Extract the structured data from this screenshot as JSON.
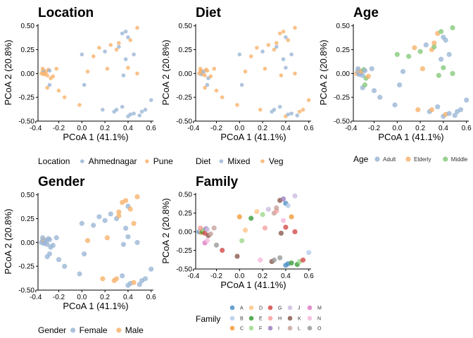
{
  "axis": {
    "xlabel": "PCoA 1 (41.1%)",
    "ylabel": "PCoA 2 (20.8%)",
    "xlim": [
      -0.38,
      0.62
    ],
    "ylim": [
      -0.5,
      0.52
    ],
    "xticks": [
      -0.4,
      -0.2,
      0.0,
      0.2,
      0.4,
      0.6
    ],
    "xtick_labels": [
      "-0.4",
      "-0.2",
      "0.0",
      "0.2",
      "0.4",
      "0.6"
    ],
    "yticks": [
      -0.5,
      -0.25,
      0.0,
      0.25,
      0.5
    ],
    "ytick_labels": [
      "-0.50",
      "-0.25",
      "0.00",
      "0.25",
      "0.50"
    ],
    "grid": false
  },
  "points": {
    "x": [
      -0.35,
      -0.34,
      -0.33,
      -0.33,
      -0.32,
      -0.31,
      -0.3,
      -0.34,
      -0.29,
      -0.28,
      -0.27,
      -0.25,
      -0.3,
      -0.28,
      -0.2,
      -0.15,
      -0.02,
      0.0,
      0.1,
      0.15,
      0.2,
      0.25,
      0.3,
      0.32,
      0.35,
      0.38,
      0.4,
      0.42,
      0.45,
      0.48,
      0.28,
      0.3,
      0.35,
      0.4,
      0.42,
      0.45,
      0.5,
      0.52,
      0.55,
      0.6,
      0.05,
      0.22,
      0.18,
      0.38,
      0.36,
      0.32,
      0.4,
      0.48,
      -0.22,
      0.02
    ],
    "y": [
      0.0,
      0.02,
      -0.01,
      0.03,
      0.0,
      0.02,
      -0.02,
      0.05,
      0.04,
      0.03,
      -0.05,
      -0.03,
      -0.15,
      -0.12,
      -0.18,
      -0.25,
      -0.33,
      0.2,
      0.18,
      0.27,
      0.23,
      0.3,
      0.25,
      0.28,
      0.42,
      0.44,
      0.38,
      0.35,
      0.2,
      0.48,
      -0.4,
      -0.38,
      -0.35,
      -0.45,
      -0.43,
      -0.42,
      -0.44,
      -0.4,
      -0.38,
      -0.28,
      0.02,
      0.05,
      -0.38,
      0.15,
      -0.02,
      0.32,
      0.06,
      0.0,
      0.05,
      -0.12
    ],
    "location": [
      "Pune",
      "Pune",
      "Pune",
      "Ahmednagar",
      "Pune",
      "Pune",
      "Pune",
      "Pune",
      "Pune",
      "Ahmednagar",
      "Pune",
      "Pune",
      "Pune",
      "Ahmednagar",
      "Pune",
      "Pune",
      "Pune",
      "Ahmednagar",
      "Pune",
      "Pune",
      "Ahmednagar",
      "Pune",
      "Pune",
      "Ahmednagar",
      "Ahmednagar",
      "Ahmednagar",
      "Ahmednagar",
      "Pune",
      "Ahmednagar",
      "Pune",
      "Ahmednagar",
      "Ahmednagar",
      "Ahmednagar",
      "Ahmednagar",
      "Ahmednagar",
      "Ahmednagar",
      "Ahmednagar",
      "Ahmednagar",
      "Ahmednagar",
      "Ahmednagar",
      "Pune",
      "Pune",
      "Ahmednagar",
      "Ahmednagar",
      "Ahmednagar",
      "Pune",
      "Pune",
      "Pune",
      "Pune",
      "Ahmednagar"
    ],
    "diet": [
      "Veg",
      "Veg",
      "Mixed",
      "Veg",
      "Veg",
      "Mixed",
      "Veg",
      "Veg",
      "Veg",
      "Veg",
      "Mixed",
      "Veg",
      "Veg",
      "Mixed",
      "Veg",
      "Veg",
      "Veg",
      "Mixed",
      "Veg",
      "Veg",
      "Mixed",
      "Veg",
      "Veg",
      "Mixed",
      "Veg",
      "Veg",
      "Mixed",
      "Veg",
      "Mixed",
      "Veg",
      "Mixed",
      "Mixed",
      "Mixed",
      "Veg",
      "Mixed",
      "Mixed",
      "Mixed",
      "Veg",
      "Veg",
      "Veg",
      "Veg",
      "Veg",
      "Veg",
      "Mixed",
      "Veg",
      "Veg",
      "Mixed",
      "Veg",
      "Veg",
      "Mixed"
    ],
    "age": [
      "Elderly",
      "Adult",
      "Adult",
      "Elderly",
      "Adult",
      "Elderly",
      "Adult",
      "Adult",
      "Middle",
      "Adult",
      "Middle",
      "Elderly",
      "Adult",
      "Middle",
      "Adult",
      "Adult",
      "Adult",
      "Middle",
      "Middle",
      "Elderly",
      "Middle",
      "Adult",
      "Elderly",
      "Middle",
      "Elderly",
      "Middle",
      "Adult",
      "Adult",
      "Adult",
      "Middle",
      "Adult",
      "Elderly",
      "Adult",
      "Adult",
      "Elderly",
      "Adult",
      "Adult",
      "Adult",
      "Adult",
      "Adult",
      "Adult",
      "Elderly",
      "Elderly",
      "Adult",
      "Middle",
      "Elderly",
      "Middle",
      "Middle",
      "Adult",
      "Adult"
    ],
    "gender": [
      "Female",
      "Female",
      "Female",
      "Male",
      "Female",
      "Female",
      "Female",
      "Female",
      "Female",
      "Female",
      "Female",
      "Female",
      "Female",
      "Female",
      "Female",
      "Female",
      "Female",
      "Female",
      "Female",
      "Female",
      "Female",
      "Female",
      "Female",
      "Male",
      "Male",
      "Male",
      "Female",
      "Male",
      "Male",
      "Male",
      "Male",
      "Male",
      "Female",
      "Female",
      "Female",
      "Male",
      "Female",
      "Female",
      "Female",
      "Female",
      "Male",
      "Male",
      "Male",
      "Female",
      "Female",
      "Male",
      "Female",
      "Female",
      "Female",
      "Female"
    ],
    "family": [
      "A",
      "B",
      "C",
      "D",
      "E",
      "F",
      "G",
      "H",
      "I",
      "J",
      "K",
      "L",
      "M",
      "N",
      "O",
      "G",
      "K",
      "C",
      "E",
      "D",
      "F",
      "J",
      "L",
      "H",
      "K",
      "I",
      "A",
      "B",
      "C",
      "J",
      "K",
      "O",
      "O",
      "A",
      "A",
      "E",
      "E",
      "F",
      "G",
      "B",
      "D",
      "H",
      "N",
      "N",
      "K",
      "L",
      "G",
      "G",
      "L",
      "F"
    ]
  },
  "chart_data": [
    {
      "type": "scatter",
      "title": "Location",
      "xlabel": "PCoA 1 (41.1%)",
      "ylabel": "PCoA 2 (20.8%)",
      "color_by": "location",
      "legend_title": "Location",
      "legend_position": "bottom",
      "groups": [
        "Ahmednagar",
        "Pune"
      ],
      "colors": [
        "#9bb6d6",
        "#f8b36d"
      ]
    },
    {
      "type": "scatter",
      "title": "Diet",
      "xlabel": "PCoA 1 (41.1%)",
      "ylabel": "PCoA 2 (20.8%)",
      "color_by": "diet",
      "legend_title": "Diet",
      "legend_position": "bottom",
      "groups": [
        "Mixed",
        "Veg"
      ],
      "colors": [
        "#9bb6d6",
        "#f8b36d"
      ]
    },
    {
      "type": "scatter",
      "title": "Age",
      "xlabel": "PCoA 1 (41.1%)",
      "ylabel": "PCoA 2 (20.8%)",
      "color_by": "age",
      "legend_title": "Age",
      "legend_position": "bottom",
      "groups": [
        "Adult",
        "Elderly",
        "Middle"
      ],
      "colors": [
        "#9bb6d6",
        "#f8b36d",
        "#86c97c"
      ]
    },
    {
      "type": "scatter",
      "title": "Gender",
      "xlabel": "PCoA 1 (41.1%)",
      "ylabel": "PCoA 2 (20.8%)",
      "color_by": "gender",
      "legend_title": "Gender",
      "legend_position": "bottom",
      "groups": [
        "Female",
        "Male"
      ],
      "colors": [
        "#9bb6d6",
        "#f8b36d"
      ]
    },
    {
      "type": "scatter",
      "title": "Family",
      "xlabel": "PCoA 1 (41.1%)",
      "ylabel": "PCoA 2 (20.8%)",
      "color_by": "family",
      "legend_title": "Family",
      "legend_position": "bottom",
      "groups": [
        "A",
        "B",
        "C",
        "D",
        "E",
        "F",
        "G",
        "H",
        "I",
        "J",
        "K",
        "L",
        "M",
        "N",
        "O"
      ],
      "colors": [
        "#4f8fc4",
        "#b4cdea",
        "#f39b3a",
        "#fcc58a",
        "#3a9d3a",
        "#9fd88c",
        "#d34a4a",
        "#f7a1a1",
        "#9b7fc2",
        "#cdbde0",
        "#8c5a4f",
        "#c9a39c",
        "#e07bc4",
        "#f5b8dc",
        "#9a9a9a"
      ]
    }
  ]
}
